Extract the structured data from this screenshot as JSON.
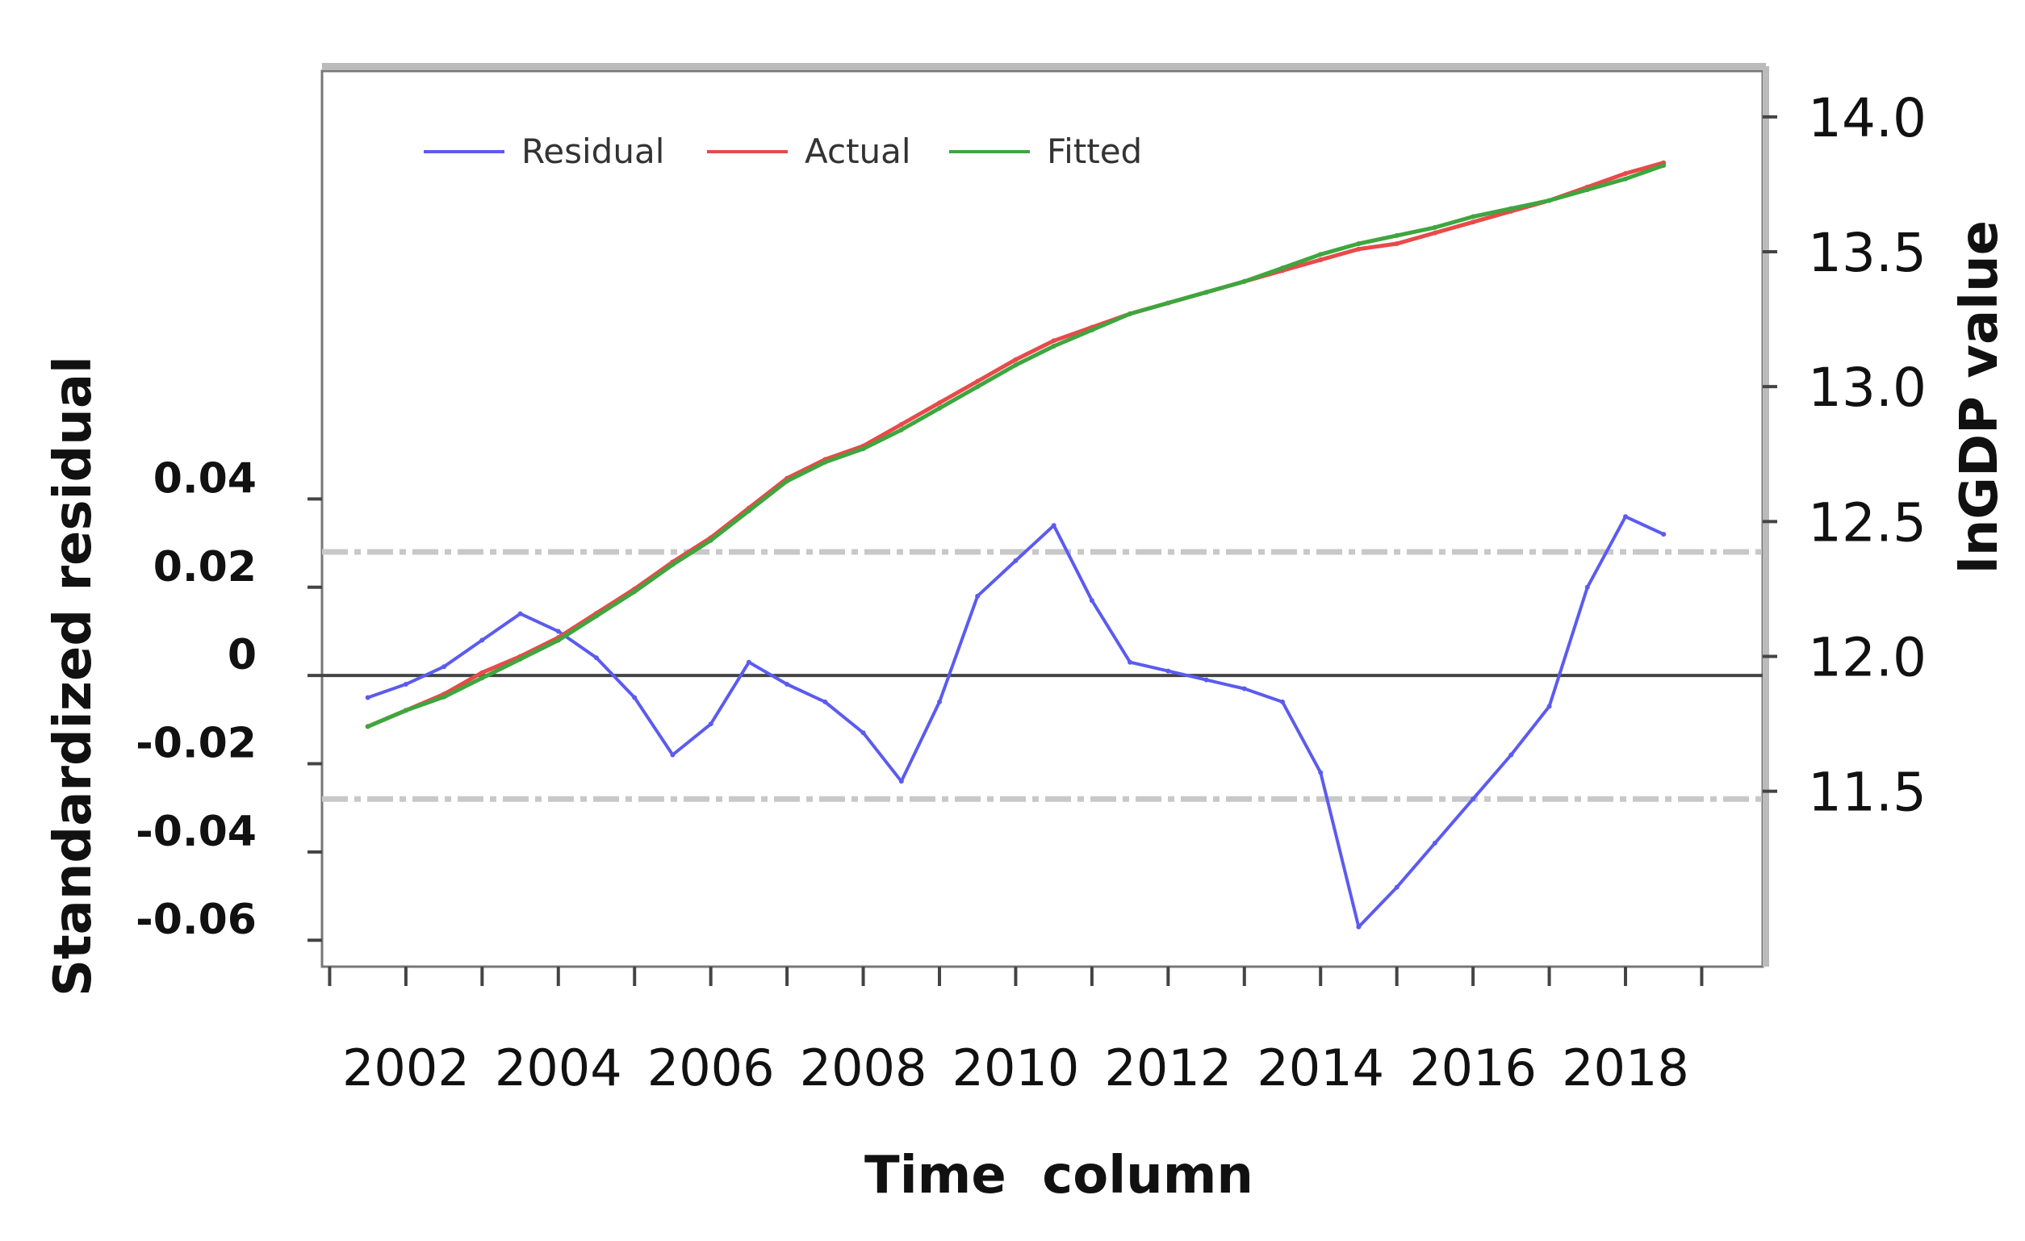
{
  "chart_data": {
    "type": "line",
    "xlabel": "Time  column",
    "ylabel_left": "Standardized residual",
    "ylabel_right": "lnGDP value",
    "x_ticks": [
      "2002",
      "2004",
      "2006",
      "2008",
      "2010",
      "2012",
      "2014",
      "2016",
      "2018"
    ],
    "x_range": [
      2000.9,
      2019.8
    ],
    "left_axis": {
      "range": [
        -0.066,
        0.137
      ],
      "ticks": [
        0.04,
        0.02,
        0,
        -0.02,
        -0.04,
        -0.06
      ],
      "tick_labels": [
        "0.04",
        "0.02",
        "0",
        "-0.02",
        "-0.04",
        "-0.06"
      ]
    },
    "right_axis": {
      "range": [
        10.85,
        14.17
      ],
      "ticks": [
        11.5,
        12.0,
        12.5,
        13.0,
        13.5,
        14.0
      ],
      "tick_labels": [
        "11.5",
        "12.0",
        "12.5",
        "13.0",
        "13.5",
        "14.0"
      ]
    },
    "reference_lines": {
      "zero": 0,
      "bands": [
        0.028,
        -0.028
      ]
    },
    "legend": {
      "placement": "top-left",
      "entries": [
        "Residual",
        "Actual",
        "Fitted"
      ]
    },
    "colors": {
      "Residual": "#5b5bf0",
      "Actual": "#e84a4a",
      "Fitted": "#3ea63e"
    },
    "series": [
      {
        "name": "Residual",
        "axis": "left",
        "x": [
          2001.5,
          2002.0,
          2002.5,
          2003.0,
          2003.5,
          2004.0,
          2004.5,
          2005.0,
          2005.5,
          2006.0,
          2006.5,
          2007.0,
          2007.5,
          2008.0,
          2008.5,
          2009.0,
          2009.5,
          2010.0,
          2010.5,
          2011.0,
          2011.5,
          2012.0,
          2012.5,
          2013.0,
          2013.5,
          2014.0,
          2014.5,
          2015.0,
          2015.5,
          2016.0,
          2016.5,
          2017.0,
          2017.5,
          2018.0,
          2018.5
        ],
        "y": [
          -0.005,
          -0.002,
          0.002,
          0.008,
          0.014,
          0.01,
          0.004,
          -0.005,
          -0.018,
          -0.011,
          0.003,
          -0.002,
          -0.006,
          -0.013,
          -0.024,
          -0.006,
          0.018,
          0.026,
          0.034,
          0.017,
          0.003,
          0.001,
          -0.001,
          -0.003,
          -0.006,
          -0.022,
          -0.057,
          -0.048,
          -0.038,
          -0.028,
          -0.018,
          -0.007,
          0.02,
          0.036,
          0.032
        ]
      },
      {
        "name": "Actual",
        "axis": "right",
        "x": [
          2001.5,
          2002.0,
          2002.5,
          2003.0,
          2003.5,
          2004.0,
          2004.5,
          2005.0,
          2005.5,
          2006.0,
          2006.5,
          2007.0,
          2007.5,
          2008.0,
          2008.5,
          2009.0,
          2009.5,
          2010.0,
          2010.5,
          2011.0,
          2011.5,
          2012.0,
          2012.5,
          2013.0,
          2013.5,
          2014.0,
          2014.5,
          2015.0,
          2015.5,
          2016.0,
          2016.5,
          2017.0,
          2017.5,
          2018.0,
          2018.5
        ],
        "y": [
          11.74,
          11.8,
          11.86,
          11.94,
          12.0,
          12.07,
          12.16,
          12.25,
          12.35,
          12.44,
          12.55,
          12.66,
          12.73,
          12.78,
          12.86,
          12.94,
          13.02,
          13.1,
          13.17,
          13.22,
          13.27,
          13.31,
          13.35,
          13.39,
          13.43,
          13.47,
          13.51,
          13.53,
          13.57,
          13.61,
          13.65,
          13.69,
          13.74,
          13.79,
          13.83
        ]
      },
      {
        "name": "Fitted",
        "axis": "right",
        "x": [
          2001.5,
          2002.0,
          2002.5,
          2003.0,
          2003.5,
          2004.0,
          2004.5,
          2005.0,
          2005.5,
          2006.0,
          2006.5,
          2007.0,
          2007.5,
          2008.0,
          2008.5,
          2009.0,
          2009.5,
          2010.0,
          2010.5,
          2011.0,
          2011.5,
          2012.0,
          2012.5,
          2013.0,
          2013.5,
          2014.0,
          2014.5,
          2015.0,
          2015.5,
          2016.0,
          2016.5,
          2017.0,
          2017.5,
          2018.0,
          2018.5
        ],
        "y": [
          11.74,
          11.8,
          11.85,
          11.92,
          11.99,
          12.06,
          12.15,
          12.24,
          12.34,
          12.43,
          12.54,
          12.65,
          12.72,
          12.77,
          12.84,
          12.92,
          13.0,
          13.08,
          13.15,
          13.21,
          13.27,
          13.31,
          13.35,
          13.39,
          13.44,
          13.49,
          13.53,
          13.56,
          13.59,
          13.63,
          13.66,
          13.69,
          13.73,
          13.77,
          13.82
        ]
      }
    ]
  }
}
